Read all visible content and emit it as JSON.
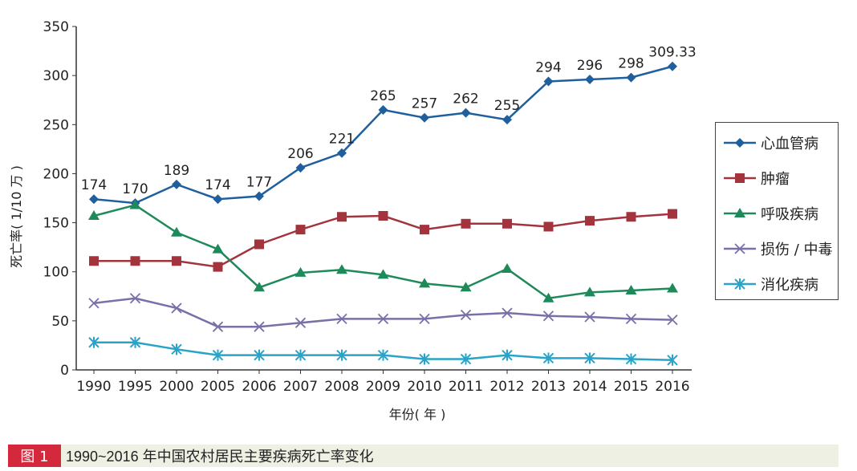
{
  "chart_data": {
    "type": "line",
    "title": "1990~2016 年中国农村居民主要疾病死亡率变化",
    "figure_label": "图 1",
    "xlabel": "年份( 年 )",
    "ylabel": "死亡率( 1/10 万 )",
    "ylim": [
      0,
      350
    ],
    "yticks": [
      "0",
      "50",
      "100",
      "150",
      "200",
      "250",
      "300",
      "350"
    ],
    "categories": [
      "1990",
      "1995",
      "2000",
      "2005",
      "2006",
      "2007",
      "2008",
      "2009",
      "2010",
      "2011",
      "2012",
      "2013",
      "2014",
      "2015",
      "2016"
    ],
    "legend_position": "right",
    "series": [
      {
        "name": "心血管病",
        "color": "#1f5f9e",
        "marker": "diamond",
        "values": [
          174,
          170,
          189,
          174,
          177,
          206,
          221,
          265,
          257,
          262,
          255,
          294,
          296,
          298,
          309.33
        ],
        "labels": [
          "174",
          "170",
          "189",
          "174",
          "177",
          "206",
          "221",
          "265",
          "257",
          "262",
          "255",
          "294",
          "296",
          "298",
          "309.33"
        ]
      },
      {
        "name": "肿瘤",
        "color": "#a3333d",
        "marker": "square",
        "values": [
          111,
          111,
          111,
          105,
          128,
          143,
          156,
          157,
          143,
          149,
          149,
          146,
          152,
          156,
          159
        ]
      },
      {
        "name": "呼吸疾病",
        "color": "#1e8a5a",
        "marker": "triangle",
        "values": [
          157,
          168,
          140,
          123,
          84,
          99,
          102,
          97,
          88,
          84,
          103,
          73,
          79,
          81,
          83
        ]
      },
      {
        "name": "损伤 / 中毒",
        "color": "#7a6fa8",
        "marker": "x",
        "values": [
          68,
          73,
          63,
          44,
          44,
          48,
          52,
          52,
          52,
          56,
          58,
          55,
          54,
          52,
          51
        ]
      },
      {
        "name": "消化疾病",
        "color": "#2aa3c8",
        "marker": "star",
        "values": [
          28,
          28,
          21,
          15,
          15,
          15,
          15,
          15,
          11,
          11,
          15,
          12,
          12,
          11,
          10
        ]
      }
    ]
  }
}
